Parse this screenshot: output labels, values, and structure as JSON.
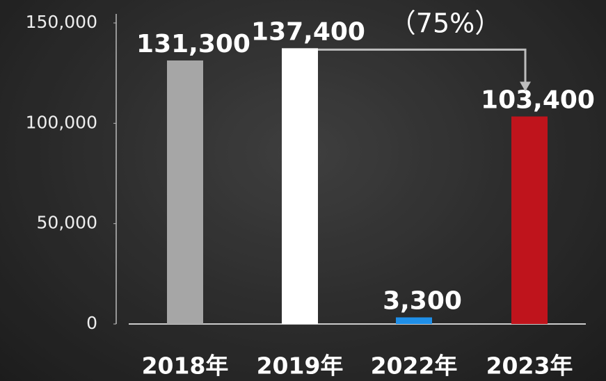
{
  "chart_data": {
    "type": "bar",
    "categories": [
      "2018年",
      "2019年",
      "2022年",
      "2023年"
    ],
    "values": [
      131300,
      137400,
      3300,
      103400
    ],
    "value_labels": [
      "131,300",
      "137,400",
      "3,300",
      "103,400"
    ],
    "colors": [
      "#a6a6a6",
      "#ffffff",
      "#1f8fe8",
      "#bf141c"
    ],
    "annotation": "（75%）",
    "ylim": [
      0,
      150000
    ],
    "yticks": [
      {
        "value": 0,
        "label": "0"
      },
      {
        "value": 50000,
        "label": "50,000"
      },
      {
        "value": 100000,
        "label": "100,000"
      },
      {
        "value": 150000,
        "label": "150,000"
      }
    ],
    "grid": false
  }
}
